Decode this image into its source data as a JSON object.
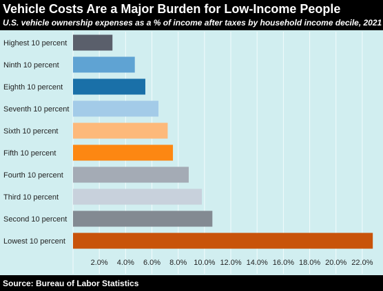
{
  "header": {
    "title": "Vehicle Costs Are a Major Burden for Low-Income People",
    "subtitle": "U.S. vehicle ownership expenses as a % of income after taxes by household income decile, 2021"
  },
  "footer": {
    "source": "Source: Bureau of Labor Statistics"
  },
  "chart_data": {
    "type": "bar",
    "orientation": "horizontal",
    "title": "Vehicle Costs Are a Major Burden for Low-Income People",
    "subtitle": "U.S. vehicle ownership expenses as a % of income after taxes by household income decile, 2021",
    "xlabel": "",
    "ylabel": "",
    "xlim": [
      0,
      23
    ],
    "grid": true,
    "x_ticks": [
      "2.0%",
      "4.0%",
      "6.0%",
      "8.0%",
      "10.0%",
      "12.0%",
      "14.0%",
      "16.0%",
      "18.0%",
      "20.0%",
      "22.0%"
    ],
    "x_tick_values": [
      2,
      4,
      6,
      8,
      10,
      12,
      14,
      16,
      18,
      20,
      22
    ],
    "categories": [
      "Highest 10 percent",
      "Ninth 10 percent",
      "Eighth 10 percent",
      "Seventh 10 percent",
      "Sixth 10 percent",
      "Fifth 10 percent",
      "Fourth 10 percent",
      "Third 10 percent",
      "Second 10 percent",
      "Lowest 10 percent"
    ],
    "values": [
      3.0,
      4.7,
      5.5,
      6.5,
      7.2,
      7.6,
      8.8,
      9.8,
      10.6,
      22.8
    ],
    "colors": [
      "#5a5f6b",
      "#5fa3d3",
      "#1a70a8",
      "#a3cbe8",
      "#fdb97a",
      "#fd8712",
      "#a4abb5",
      "#c8d1dc",
      "#838a92",
      "#c8530a"
    ]
  }
}
